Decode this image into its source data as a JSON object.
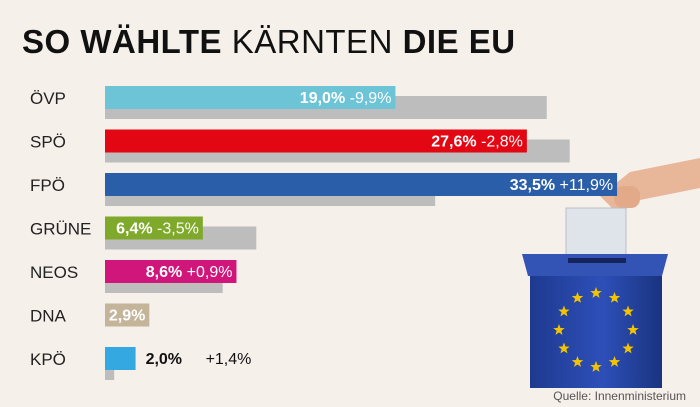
{
  "title": {
    "part1": "SO WÄHLTE",
    "part2": "KÄRNTEN",
    "part3": "DIE EU"
  },
  "source": "Quelle: Innenministerium",
  "colors": {
    "background": "#f6f0ea",
    "previous": "#bdbdbd",
    "white": "#ffffff"
  },
  "chart_data": {
    "type": "bar",
    "orientation": "horizontal",
    "categories": [
      "ÖVP",
      "SPÖ",
      "FPÖ",
      "GRÜNE",
      "NEOS",
      "DNA",
      "KPÖ"
    ],
    "series": [
      {
        "values": [
          19.0,
          27.6,
          33.5,
          6.4,
          8.6,
          2.9,
          2.0
        ],
        "labels": [
          "19,0%",
          "27,6%",
          "33,5%",
          "6,4%",
          "8,6%",
          "2,9%",
          "2,0%"
        ],
        "colors": [
          "#6cc4d6",
          "#e30613",
          "#2a5ea8",
          "#7ea92a",
          "#d0167a",
          "#c4b59a",
          "#34a8e0"
        ]
      },
      {
        "values": [
          28.9,
          30.4,
          21.6,
          9.9,
          7.7,
          null,
          0.6
        ]
      }
    ],
    "changes": [
      "-9,9%",
      "-2,8%",
      "+11,9%",
      "-3,5%",
      "+0,9%",
      "",
      "+1,4%"
    ],
    "xlim": [
      0,
      35
    ]
  }
}
